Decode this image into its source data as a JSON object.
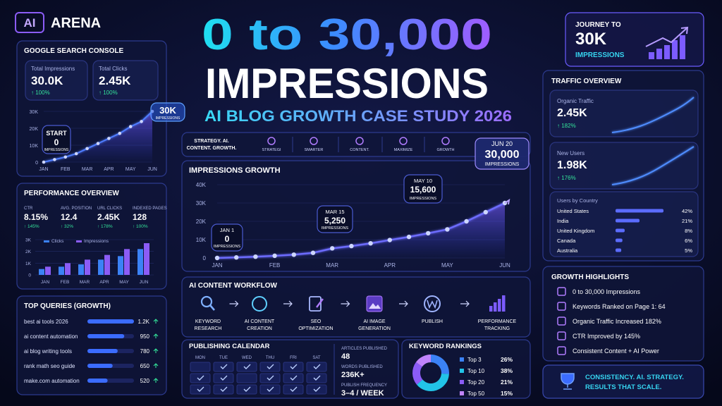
{
  "header": {
    "logo_badge": "AI",
    "logo_text": "ARENA",
    "title_line1": "0 to 30,000",
    "title_line2": "IMPRESSIONS",
    "subtitle": "AI BLOG GROWTH CASE STUDY 2026"
  },
  "journey": {
    "label": "JOURNEY TO",
    "value": "30K",
    "unit": "IMPRESSIONS"
  },
  "search_console": {
    "title": "GOOGLE SEARCH CONSOLE",
    "cards": [
      {
        "label": "Total Impressions",
        "value": "30.0K",
        "change": "↑ 100%"
      },
      {
        "label": "Total Clicks",
        "value": "2.45K",
        "change": "↑ 100%"
      }
    ],
    "chart": {
      "type": "line",
      "color": "#4f7dff",
      "categories": [
        "JAN",
        null,
        "FEB",
        null,
        "MAR",
        null,
        "APR",
        null,
        "MAY",
        null,
        "JUN"
      ],
      "values": [
        0,
        1500,
        3000,
        5000,
        8000,
        11000,
        14000,
        17000,
        21000,
        24000,
        30000
      ],
      "ylim": [
        0,
        30000
      ],
      "yticks": [
        0,
        {
          "value": 10000,
          "label": "10K"
        },
        {
          "value": 20000,
          "label": "20K"
        },
        {
          "value": 30000,
          "label": "30K"
        }
      ],
      "annotations": [
        {
          "title": "START",
          "value": "0",
          "unit": "IMPRESSIONS"
        },
        {
          "value": "30K",
          "unit": "IMPRESSIONS"
        }
      ]
    }
  },
  "performance": {
    "title": "PERFORMANCE OVERVIEW",
    "stats": [
      {
        "label": "CTR",
        "value": "8.15%",
        "change": "↑ 145%"
      },
      {
        "label": "AVG. POSITION",
        "value": "12.4",
        "change": "↑ 32%"
      },
      {
        "label": "URL CLICKS",
        "value": "2.45K",
        "change": "↑ 178%"
      },
      {
        "label": "INDEXED PAGES",
        "value": "128",
        "change": "↑ 100%"
      }
    ],
    "chart": {
      "type": "bar",
      "categories": [
        "JAN",
        "FEB",
        "MAR",
        "APR",
        "MAY",
        "JUN"
      ],
      "series": [
        {
          "name": "Clicks",
          "color": "#3b82f6",
          "values": [
            500,
            700,
            900,
            1300,
            1600,
            2200
          ]
        },
        {
          "name": "Impressions",
          "color": "#8b5cf6",
          "values": [
            700,
            1000,
            1300,
            1700,
            2200,
            2700
          ]
        }
      ],
      "ylim": [
        0,
        3000
      ],
      "yticks": [
        0,
        {
          "value": 1000,
          "label": "1K"
        },
        {
          "value": 2000,
          "label": "2K"
        },
        {
          "value": 3000,
          "label": "3K"
        }
      ]
    }
  },
  "top_queries": {
    "title": "TOP QUERIES (GROWTH)",
    "chart": {
      "type": "bar",
      "color": "#3b6cff",
      "categories": [
        "best ai tools 2026",
        "ai content automation",
        "ai blog writing tools",
        "rank math seo guide",
        "make.com automation"
      ],
      "values": [
        1200,
        950,
        780,
        650,
        520
      ],
      "value_labels": [
        "1.2K",
        "950",
        "780",
        "650",
        "520"
      ]
    }
  },
  "strategy": {
    "tagline": [
      "STRATEGY. AI.",
      "CONTENT. GROWTH."
    ],
    "items": [
      "STRATEGI",
      "SMARTER",
      "CONTENT.",
      "MAXIMIZE",
      "GROWTH"
    ]
  },
  "impressions": {
    "title": "IMPRESSIONS GROWTH",
    "chart": {
      "type": "line",
      "color": "#6d6cff",
      "categories": [
        "JAN",
        null,
        null,
        "FEB",
        null,
        null,
        "MAR",
        null,
        null,
        "APR",
        null,
        null,
        "MAY",
        null,
        null,
        "JUN"
      ],
      "values": [
        0,
        300,
        700,
        1200,
        1800,
        2800,
        5250,
        6500,
        8000,
        9800,
        11500,
        13500,
        15600,
        20000,
        25000,
        30000
      ],
      "ylim": [
        0,
        40000
      ],
      "yticks": [
        0,
        {
          "value": 10000,
          "label": "10K"
        },
        {
          "value": 20000,
          "label": "20K"
        },
        {
          "value": 30000,
          "label": "30K"
        },
        {
          "value": 40000,
          "label": "40K"
        }
      ],
      "annotations": [
        {
          "date": "JAN 1",
          "value": "0",
          "unit": "IMPRESSIONS"
        },
        {
          "date": "MAR 15",
          "value": "5,250",
          "unit": "IMPRESSIONS"
        },
        {
          "date": "MAY 10",
          "value": "15,600",
          "unit": "IMPRESSIONS"
        },
        {
          "date": "JUN 20",
          "value": "30,000",
          "unit": "IMPRESSIONS"
        }
      ]
    }
  },
  "workflow": {
    "title": "AI CONTENT WORKFLOW",
    "steps": [
      [
        "KEYWORD",
        "RESEARCH"
      ],
      [
        "AI CONTENT",
        "CREATION"
      ],
      [
        "SEO",
        "OPTIMIZATION"
      ],
      [
        "AI IMAGE",
        "GENERATION"
      ],
      [
        "PUBLISH"
      ],
      [
        "PERFORMANCE",
        "TRACKING"
      ]
    ]
  },
  "calendar": {
    "title": "PUBLISHING CALENDAR",
    "days": [
      "MON",
      "TUE",
      "WED",
      "THU",
      "FRI",
      "SAT"
    ],
    "stats": [
      {
        "label": "ARTICLES PUBLISHED",
        "value": "48"
      },
      {
        "label": "WORDS PUBLISHED",
        "value": "236K+"
      },
      {
        "label": "PUBLISH FREQUENCY",
        "value": "3–4 / WEEK"
      }
    ]
  },
  "keywords": {
    "title": "KEYWORD RANKINGS",
    "chart": {
      "type": "pie",
      "categories": [
        "Top 3",
        "Top 10",
        "Top 20",
        "Top 50"
      ],
      "values": [
        26,
        38,
        21,
        15
      ],
      "value_labels": [
        "26%",
        "38%",
        "21%",
        "15%"
      ],
      "colors": [
        "#3b82f6",
        "#22c4e8",
        "#8b5cf6",
        "#c084fc"
      ]
    }
  },
  "traffic": {
    "title": "TRAFFIC OVERVIEW",
    "cards": [
      {
        "label": "Organic Traffic",
        "value": "2.45K",
        "change": "↑ 182%"
      },
      {
        "label": "New Users",
        "value": "1.98K",
        "change": "↑ 176%"
      }
    ],
    "countries": {
      "title": "Users by Country",
      "chart": {
        "type": "bar",
        "color": "#5b6cff",
        "categories": [
          "United States",
          "India",
          "United Kingdom",
          "Canada",
          "Australia"
        ],
        "values": [
          42,
          21,
          8,
          6,
          5
        ],
        "value_labels": [
          "42%",
          "21%",
          "8%",
          "6%",
          "5%"
        ]
      }
    }
  },
  "highlights": {
    "title": "GROWTH HIGHLIGHTS",
    "items": [
      "0 to 30,000 Impressions",
      "Keywords Ranked on Page 1: 64",
      "Organic Traffic Increased 182%",
      "CTR Improved by 145%",
      "Consistent Content + AI Power"
    ]
  },
  "footer": {
    "lines": [
      "CONSISTENCY. AI. STRATEGY.",
      "RESULTS THAT SCALE."
    ]
  }
}
